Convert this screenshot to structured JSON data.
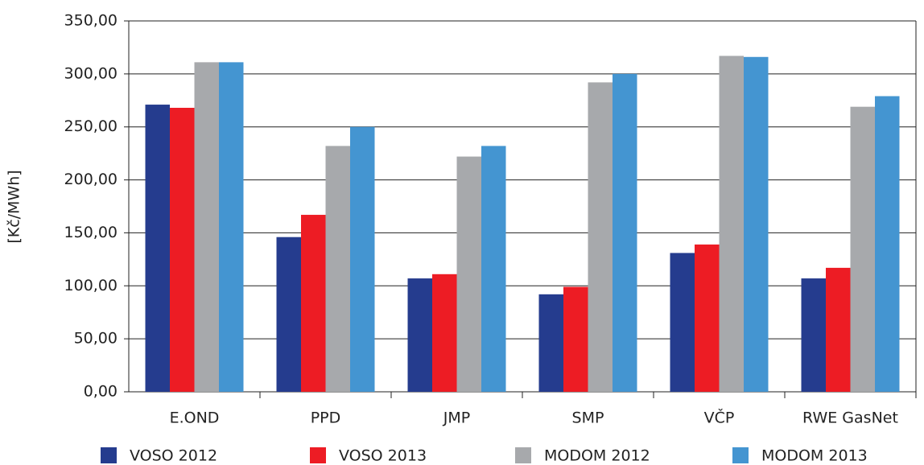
{
  "chart_data": {
    "type": "bar",
    "ylabel": "[Kč/MWh]",
    "categories": [
      "E.OND",
      "PPD",
      "JMP",
      "SMP",
      "VČP",
      "RWE GasNet"
    ],
    "series": [
      {
        "name": "VOSO 2012",
        "color": "#253c8e",
        "values": [
          271,
          146,
          107,
          92,
          131,
          107
        ]
      },
      {
        "name": "VOSO 2013",
        "color": "#ed1c24",
        "values": [
          268,
          167,
          111,
          99,
          139,
          117
        ]
      },
      {
        "name": "MODOM 2012",
        "color": "#a7a9ac",
        "values": [
          311,
          232,
          222,
          292,
          317,
          269
        ]
      },
      {
        "name": "MODOM 2013",
        "color": "#4495d1",
        "values": [
          311,
          250,
          232,
          300,
          316,
          279
        ]
      }
    ],
    "ylim": [
      0,
      350
    ],
    "yticks": [
      {
        "value": 0,
        "label": "0,00"
      },
      {
        "value": 50,
        "label": "50,00"
      },
      {
        "value": 100,
        "label": "100,00"
      },
      {
        "value": 150,
        "label": "150,00"
      },
      {
        "value": 200,
        "label": "200,00"
      },
      {
        "value": 250,
        "label": "250,00"
      },
      {
        "value": 300,
        "label": "300,00"
      },
      {
        "value": 350,
        "label": "350,00"
      }
    ],
    "grid": true
  }
}
